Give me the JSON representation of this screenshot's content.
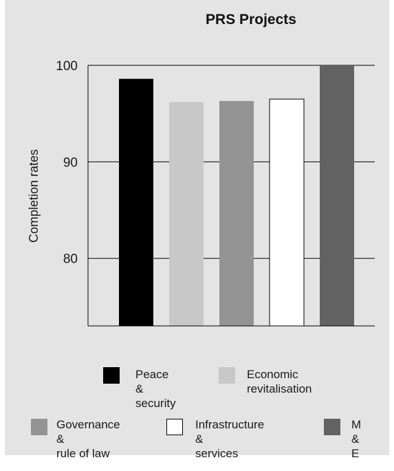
{
  "chart_data": {
    "type": "bar",
    "title": "PRS Projects",
    "xlabel": "",
    "ylabel": "Completion rates",
    "ylim": [
      73,
      100
    ],
    "yticks": [
      80,
      90,
      100
    ],
    "grid": true,
    "categories": [
      "Peace & security",
      "Economic revitalisation",
      "Governance & rule of law",
      "Infrastructure & services",
      "M & E"
    ],
    "values": [
      98.6,
      96.2,
      96.3,
      96.5,
      100
    ],
    "colors": [
      "#000000",
      "#c8c8c8",
      "#939393",
      "#ffffff",
      "#626262"
    ],
    "legend": {
      "position": "bottom",
      "entries": [
        {
          "label": "Peace &\nsecurity",
          "color": "#000000"
        },
        {
          "label": "Economic\nrevitalisation",
          "color": "#c8c8c8"
        },
        {
          "label": "Governance &\nrule of law",
          "color": "#939393"
        },
        {
          "label": "Infrastructure &\nservices",
          "color": "#ffffff"
        },
        {
          "label": "M & E",
          "color": "#626262"
        }
      ]
    }
  }
}
